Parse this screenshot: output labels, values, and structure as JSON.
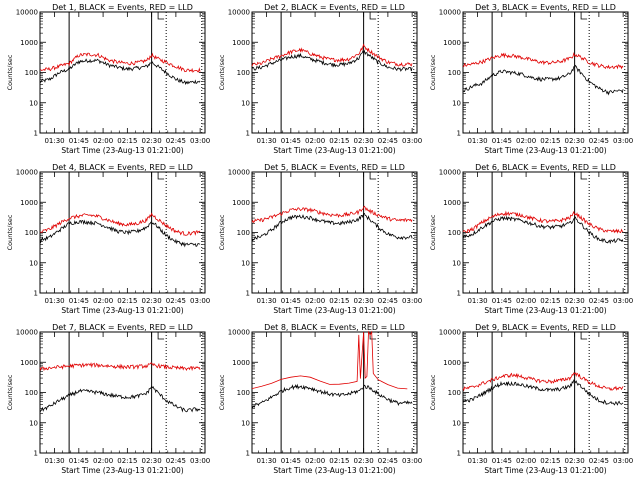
{
  "figure": {
    "xlabel": "Start Time (23-Aug-13 01:21:00)",
    "ylabel": "Counts/sec",
    "legend_text": "BLACK = Events, RED = LLD",
    "series_names": [
      "Events",
      "LLD"
    ],
    "series_colors": {
      "events": "#000000",
      "lld": "#e00000"
    },
    "yscale": "log",
    "ylim": [
      1,
      10000
    ],
    "ytick_labels": [
      "1",
      "10",
      "100",
      "1000",
      "10000"
    ],
    "xlim_minutes": [
      81,
      183
    ],
    "xtick_labels": [
      "01:30",
      "01:45",
      "02:00",
      "02:15",
      "02:30",
      "02:45",
      "03:00"
    ],
    "xtick_minutes": [
      90,
      105,
      120,
      135,
      150,
      165,
      180
    ]
  },
  "chart_data": [
    {
      "type": "line",
      "title": "Det 1, BLACK = Events, RED = LLD",
      "xlabel": "Start Time (23-Aug-13 01:21:00)",
      "ylabel": "Counts/sec",
      "ylim": [
        1,
        10000
      ],
      "x": [
        81,
        87,
        93,
        99,
        105,
        111,
        117,
        123,
        129,
        135,
        141,
        147,
        150,
        153,
        159,
        165,
        171,
        177
      ],
      "series": [
        {
          "name": "Events",
          "values": [
            50,
            60,
            100,
            130,
            230,
            250,
            250,
            180,
            150,
            130,
            140,
            160,
            220,
            170,
            100,
            60,
            45,
            50
          ]
        },
        {
          "name": "LLD",
          "values": [
            120,
            130,
            160,
            200,
            370,
            400,
            380,
            260,
            220,
            200,
            210,
            250,
            380,
            300,
            220,
            160,
            120,
            120
          ]
        }
      ]
    },
    {
      "type": "line",
      "title": "Det 2, BLACK = Events, RED = LLD",
      "xlabel": "Start Time (23-Aug-13 01:21:00)",
      "ylabel": "Counts/sec",
      "ylim": [
        1,
        10000
      ],
      "x": [
        81,
        87,
        93,
        99,
        105,
        111,
        117,
        123,
        129,
        135,
        141,
        147,
        150,
        153,
        159,
        165,
        171,
        177
      ],
      "series": [
        {
          "name": "Events",
          "values": [
            130,
            150,
            200,
            260,
            330,
            360,
            280,
            230,
            190,
            180,
            200,
            300,
            500,
            380,
            220,
            150,
            130,
            130
          ]
        },
        {
          "name": "LLD",
          "values": [
            180,
            200,
            280,
            360,
            480,
            560,
            430,
            330,
            270,
            260,
            280,
            420,
            750,
            560,
            330,
            220,
            190,
            190
          ]
        }
      ]
    },
    {
      "type": "line",
      "title": "Det 3, BLACK = Events, RED = LLD",
      "xlabel": "Start Time (23-Aug-13 01:21:00)",
      "ylabel": "Counts/sec",
      "ylim": [
        1,
        10000
      ],
      "x": [
        81,
        87,
        93,
        99,
        105,
        111,
        117,
        123,
        129,
        135,
        141,
        147,
        150,
        153,
        159,
        165,
        171,
        177
      ],
      "series": [
        {
          "name": "Events",
          "values": [
            25,
            35,
            45,
            80,
            110,
            100,
            90,
            70,
            60,
            60,
            65,
            90,
            160,
            110,
            50,
            30,
            22,
            25
          ]
        },
        {
          "name": "LLD",
          "values": [
            170,
            190,
            230,
            300,
            380,
            360,
            320,
            260,
            220,
            210,
            230,
            290,
            400,
            340,
            220,
            170,
            150,
            160
          ]
        }
      ]
    },
    {
      "type": "line",
      "title": "Det 4, BLACK = Events, RED = LLD",
      "xlabel": "Start Time (23-Aug-13 01:21:00)",
      "ylabel": "Counts/sec",
      "ylim": [
        1,
        10000
      ],
      "x": [
        81,
        87,
        93,
        99,
        105,
        111,
        117,
        123,
        129,
        135,
        141,
        147,
        150,
        153,
        159,
        165,
        171,
        177
      ],
      "series": [
        {
          "name": "Events",
          "values": [
            55,
            70,
            120,
            200,
            230,
            220,
            200,
            150,
            110,
            100,
            110,
            150,
            230,
            170,
            80,
            50,
            40,
            40
          ]
        },
        {
          "name": "LLD",
          "values": [
            100,
            130,
            200,
            300,
            350,
            380,
            340,
            260,
            200,
            180,
            200,
            260,
            400,
            300,
            170,
            110,
            90,
            100
          ]
        }
      ]
    },
    {
      "type": "line",
      "title": "Det 5, BLACK = Events, RED = LLD",
      "xlabel": "Start Time (23-Aug-13 01:21:00)",
      "ylabel": "Counts/sec",
      "ylim": [
        1,
        10000
      ],
      "x": [
        81,
        87,
        93,
        99,
        105,
        111,
        117,
        123,
        129,
        135,
        141,
        147,
        150,
        153,
        159,
        165,
        171,
        177
      ],
      "series": [
        {
          "name": "Events",
          "values": [
            60,
            75,
            120,
            220,
            320,
            340,
            310,
            250,
            210,
            200,
            220,
            280,
            400,
            300,
            150,
            90,
            70,
            70
          ]
        },
        {
          "name": "LLD",
          "values": [
            230,
            260,
            320,
            420,
            560,
            600,
            560,
            460,
            390,
            370,
            400,
            480,
            700,
            540,
            380,
            290,
            250,
            260
          ]
        }
      ]
    },
    {
      "type": "line",
      "title": "Det 6, BLACK = Events, RED = LLD",
      "xlabel": "Start Time (23-Aug-13 01:21:00)",
      "ylabel": "Counts/sec",
      "ylim": [
        1,
        10000
      ],
      "x": [
        81,
        87,
        93,
        99,
        105,
        111,
        117,
        123,
        129,
        135,
        141,
        147,
        150,
        153,
        159,
        165,
        171,
        177
      ],
      "series": [
        {
          "name": "Events",
          "values": [
            70,
            90,
            150,
            230,
            300,
            280,
            250,
            200,
            160,
            150,
            160,
            200,
            300,
            220,
            100,
            60,
            50,
            55
          ]
        },
        {
          "name": "LLD",
          "values": [
            100,
            130,
            220,
            330,
            430,
            420,
            380,
            300,
            250,
            230,
            250,
            310,
            450,
            340,
            190,
            130,
            110,
            110
          ]
        }
      ]
    },
    {
      "type": "line",
      "title": "Det 7, BLACK = Events, RED = LLD",
      "xlabel": "Start Time (23-Aug-13 01:21:00)",
      "ylabel": "Counts/sec",
      "ylim": [
        1,
        10000
      ],
      "x": [
        81,
        87,
        93,
        99,
        105,
        111,
        117,
        123,
        129,
        135,
        141,
        147,
        150,
        153,
        159,
        165,
        171,
        177
      ],
      "series": [
        {
          "name": "Events",
          "values": [
            25,
            35,
            55,
            80,
            110,
            110,
            100,
            85,
            75,
            70,
            75,
            95,
            160,
            110,
            55,
            35,
            25,
            28
          ]
        },
        {
          "name": "LLD",
          "values": [
            600,
            650,
            700,
            750,
            800,
            820,
            800,
            760,
            720,
            700,
            720,
            760,
            850,
            780,
            700,
            650,
            620,
            640
          ]
        }
      ]
    },
    {
      "type": "line",
      "title": "Det 8, BLACK = Events, RED = LLD",
      "xlabel": "Start Time (23-Aug-13 01:21:00)",
      "ylabel": "Counts/sec",
      "ylim": [
        1,
        10000
      ],
      "x": [
        81,
        87,
        93,
        99,
        105,
        111,
        117,
        123,
        129,
        135,
        141,
        146,
        147,
        148,
        150,
        151,
        152,
        153,
        154,
        155,
        156,
        159,
        165,
        171,
        177
      ],
      "series": [
        {
          "name": "Events",
          "values": [
            35,
            45,
            70,
            110,
            150,
            160,
            140,
            110,
            90,
            80,
            90,
            110,
            110,
            120,
            160,
            160,
            150,
            150,
            140,
            130,
            120,
            90,
            60,
            45,
            45
          ]
        },
        {
          "name": "LLD",
          "values": [
            130,
            150,
            200,
            260,
            330,
            340,
            300,
            240,
            200,
            190,
            210,
            240,
            8000,
            300,
            10000,
            300,
            350,
            10000,
            8000,
            10000,
            400,
            260,
            180,
            140,
            140
          ]
        }
      ]
    },
    {
      "type": "line",
      "title": "Det 9, BLACK = Events, RED = LLD",
      "xlabel": "Start Time (23-Aug-13 01:21:00)",
      "ylabel": "Counts/sec",
      "ylim": [
        1,
        10000
      ],
      "x": [
        81,
        87,
        93,
        99,
        105,
        111,
        117,
        123,
        129,
        135,
        141,
        147,
        150,
        153,
        159,
        165,
        171,
        177
      ],
      "series": [
        {
          "name": "Events",
          "values": [
            50,
            60,
            90,
            140,
            200,
            200,
            180,
            150,
            130,
            120,
            130,
            160,
            250,
            180,
            90,
            55,
            45,
            45
          ]
        },
        {
          "name": "LLD",
          "values": [
            130,
            150,
            200,
            260,
            340,
            380,
            340,
            280,
            240,
            230,
            250,
            300,
            450,
            350,
            220,
            160,
            130,
            140
          ]
        }
      ]
    }
  ]
}
